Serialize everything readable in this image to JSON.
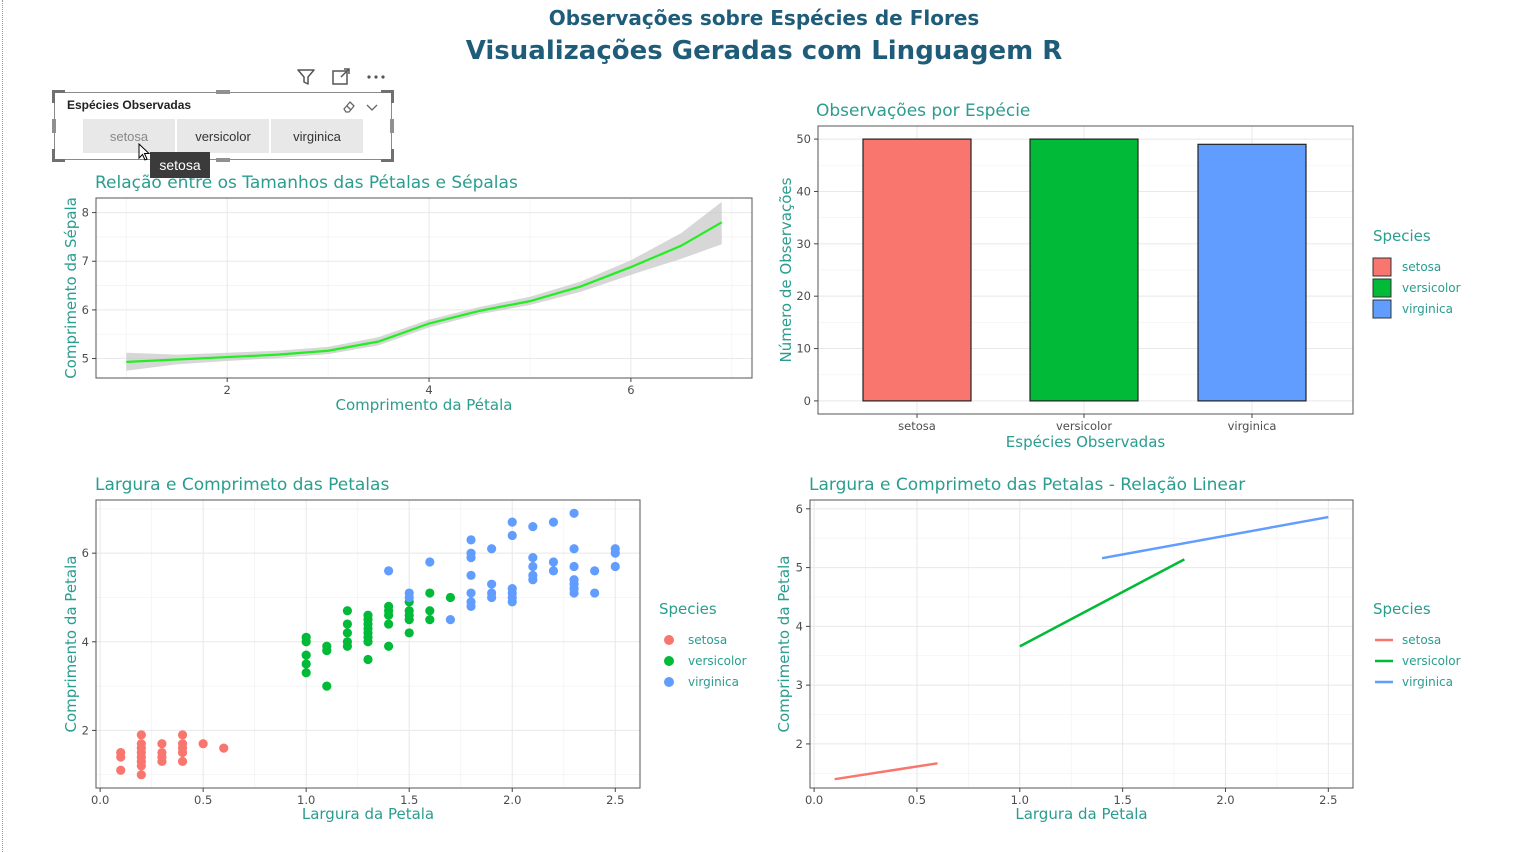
{
  "header": {
    "supertitle": "Observações sobre Espécies de Flores",
    "title": "Visualizações Geradas com Linguagem R"
  },
  "toolbar": {
    "icons": [
      "filter-icon",
      "focus-mode-icon",
      "more-options-icon"
    ]
  },
  "slicer": {
    "title": "Espécies Observadas",
    "options": [
      "setosa",
      "versicolor",
      "virginica"
    ],
    "hovered": "setosa",
    "tooltip": "setosa",
    "icons": [
      "eraser-icon",
      "chevron-down-icon"
    ]
  },
  "colors": {
    "setosa": "#F8766D",
    "versicolor": "#00BA38",
    "virginica": "#619CFF",
    "title_teal": "#2a9d8f",
    "header_blue": "#1e5c7a"
  },
  "chart_data": [
    {
      "id": "smooth",
      "type": "line",
      "title": "Relação entre os Tamanhos das Pétalas e Sépalas",
      "xlabel": "Comprimento da Pétala",
      "ylabel": "Comprimento da Sépala",
      "xlim": [
        0.7,
        7.2
      ],
      "ylim": [
        4.6,
        8.3
      ],
      "xticks": [
        2,
        4,
        6
      ],
      "yticks": [
        5,
        6,
        7,
        8
      ],
      "grid": true,
      "series": [
        {
          "x": [
            1.0,
            1.5,
            2.0,
            2.5,
            3.0,
            3.5,
            4.0,
            4.5,
            5.0,
            5.5,
            6.0,
            6.5,
            6.9
          ],
          "y": [
            4.93,
            4.98,
            5.03,
            5.08,
            5.16,
            5.35,
            5.72,
            5.98,
            6.18,
            6.48,
            6.88,
            7.32,
            7.8
          ],
          "ci_low": [
            4.75,
            4.88,
            4.95,
            5.01,
            5.09,
            5.27,
            5.64,
            5.91,
            6.1,
            6.37,
            6.72,
            7.05,
            7.35
          ],
          "ci_high": [
            5.12,
            5.08,
            5.12,
            5.16,
            5.24,
            5.44,
            5.8,
            6.06,
            6.27,
            6.58,
            7.02,
            7.58,
            8.22
          ]
        }
      ]
    },
    {
      "id": "bars",
      "type": "bar",
      "title": "Observações por Espécie",
      "xlabel": "Espécies Observadas",
      "ylabel": "Número de Observações",
      "categories": [
        "setosa",
        "versicolor",
        "virginica"
      ],
      "values": [
        50,
        50,
        49
      ],
      "ylim": [
        -2.5,
        52.5
      ],
      "yticks": [
        0,
        10,
        20,
        30,
        40,
        50
      ],
      "grid": true,
      "legend": {
        "title": "Species",
        "entries": [
          "setosa",
          "versicolor",
          "virginica"
        ],
        "position": "right"
      }
    },
    {
      "id": "scatter",
      "type": "scatter",
      "title": "Largura e Comprimeto das Petalas",
      "xlabel": "Largura da Petala",
      "ylabel": "Comprimento da Petala",
      "xlim": [
        -0.02,
        2.62
      ],
      "ylim": [
        0.7,
        7.2
      ],
      "xticks": [
        "0.0",
        "0.5",
        "1.0",
        "1.5",
        "2.0",
        "2.5"
      ],
      "yticks": [
        2,
        4,
        6
      ],
      "grid": true,
      "legend": {
        "title": "Species",
        "entries": [
          "setosa",
          "versicolor",
          "virginica"
        ],
        "position": "right"
      },
      "series": [
        {
          "name": "setosa",
          "points": [
            [
              0.1,
              1.1
            ],
            [
              0.1,
              1.4
            ],
            [
              0.1,
              1.5
            ],
            [
              0.2,
              1.0
            ],
            [
              0.2,
              1.2
            ],
            [
              0.2,
              1.3
            ],
            [
              0.2,
              1.4
            ],
            [
              0.2,
              1.5
            ],
            [
              0.2,
              1.6
            ],
            [
              0.2,
              1.7
            ],
            [
              0.2,
              1.9
            ],
            [
              0.3,
              1.3
            ],
            [
              0.3,
              1.4
            ],
            [
              0.3,
              1.5
            ],
            [
              0.3,
              1.7
            ],
            [
              0.4,
              1.3
            ],
            [
              0.4,
              1.5
            ],
            [
              0.4,
              1.6
            ],
            [
              0.4,
              1.7
            ],
            [
              0.4,
              1.9
            ],
            [
              0.5,
              1.7
            ],
            [
              0.6,
              1.6
            ]
          ]
        },
        {
          "name": "versicolor",
          "points": [
            [
              1.0,
              3.3
            ],
            [
              1.0,
              3.5
            ],
            [
              1.0,
              3.7
            ],
            [
              1.0,
              4.0
            ],
            [
              1.0,
              4.1
            ],
            [
              1.1,
              3.0
            ],
            [
              1.1,
              3.8
            ],
            [
              1.1,
              3.9
            ],
            [
              1.2,
              3.9
            ],
            [
              1.2,
              4.0
            ],
            [
              1.2,
              4.2
            ],
            [
              1.2,
              4.4
            ],
            [
              1.2,
              4.7
            ],
            [
              1.3,
              3.6
            ],
            [
              1.3,
              4.0
            ],
            [
              1.3,
              4.1
            ],
            [
              1.3,
              4.2
            ],
            [
              1.3,
              4.3
            ],
            [
              1.3,
              4.4
            ],
            [
              1.3,
              4.5
            ],
            [
              1.3,
              4.6
            ],
            [
              1.4,
              3.9
            ],
            [
              1.4,
              4.4
            ],
            [
              1.4,
              4.6
            ],
            [
              1.4,
              4.7
            ],
            [
              1.4,
              4.8
            ],
            [
              1.5,
              4.2
            ],
            [
              1.5,
              4.5
            ],
            [
              1.5,
              4.6
            ],
            [
              1.5,
              4.7
            ],
            [
              1.5,
              4.9
            ],
            [
              1.6,
              4.5
            ],
            [
              1.6,
              4.7
            ],
            [
              1.6,
              5.1
            ],
            [
              1.7,
              5.0
            ]
          ]
        },
        {
          "name": "virginica",
          "points": [
            [
              1.4,
              5.6
            ],
            [
              1.5,
              5.0
            ],
            [
              1.5,
              5.1
            ],
            [
              1.6,
              5.8
            ],
            [
              1.7,
              4.5
            ],
            [
              1.8,
              4.8
            ],
            [
              1.8,
              4.9
            ],
            [
              1.8,
              5.1
            ],
            [
              1.8,
              5.5
            ],
            [
              1.8,
              5.9
            ],
            [
              1.8,
              6.0
            ],
            [
              1.8,
              6.3
            ],
            [
              1.9,
              5.0
            ],
            [
              1.9,
              5.1
            ],
            [
              1.9,
              5.3
            ],
            [
              1.9,
              6.1
            ],
            [
              2.0,
              4.9
            ],
            [
              2.0,
              5.0
            ],
            [
              2.0,
              5.1
            ],
            [
              2.0,
              5.2
            ],
            [
              2.0,
              6.4
            ],
            [
              2.0,
              6.7
            ],
            [
              2.1,
              5.4
            ],
            [
              2.1,
              5.5
            ],
            [
              2.1,
              5.7
            ],
            [
              2.1,
              5.9
            ],
            [
              2.1,
              6.6
            ],
            [
              2.2,
              5.6
            ],
            [
              2.2,
              5.8
            ],
            [
              2.2,
              6.7
            ],
            [
              2.3,
              5.1
            ],
            [
              2.3,
              5.2
            ],
            [
              2.3,
              5.3
            ],
            [
              2.3,
              5.4
            ],
            [
              2.3,
              5.7
            ],
            [
              2.3,
              6.1
            ],
            [
              2.3,
              6.9
            ],
            [
              2.4,
              5.1
            ],
            [
              2.4,
              5.6
            ],
            [
              2.5,
              5.7
            ],
            [
              2.5,
              6.0
            ],
            [
              2.5,
              6.1
            ]
          ]
        }
      ]
    },
    {
      "id": "lines",
      "type": "line",
      "title": "Largura e Comprimeto das Petalas - Relação Linear",
      "xlabel": "Largura da Petala",
      "ylabel": "Comprimento da Petala",
      "xlim": [
        -0.02,
        2.62
      ],
      "ylim": [
        1.25,
        6.15
      ],
      "xticks": [
        "0.0",
        "0.5",
        "1.0",
        "1.5",
        "2.0",
        "2.5"
      ],
      "yticks": [
        2,
        3,
        4,
        5,
        6
      ],
      "grid": true,
      "legend": {
        "title": "Species",
        "entries": [
          "setosa",
          "versicolor",
          "virginica"
        ],
        "position": "right"
      },
      "series": [
        {
          "name": "setosa",
          "x": [
            0.1,
            0.6
          ],
          "y": [
            1.4,
            1.67
          ]
        },
        {
          "name": "versicolor",
          "x": [
            1.0,
            1.8
          ],
          "y": [
            3.66,
            5.14
          ]
        },
        {
          "name": "virginica",
          "x": [
            1.4,
            2.5
          ],
          "y": [
            5.16,
            5.86
          ]
        }
      ]
    }
  ]
}
